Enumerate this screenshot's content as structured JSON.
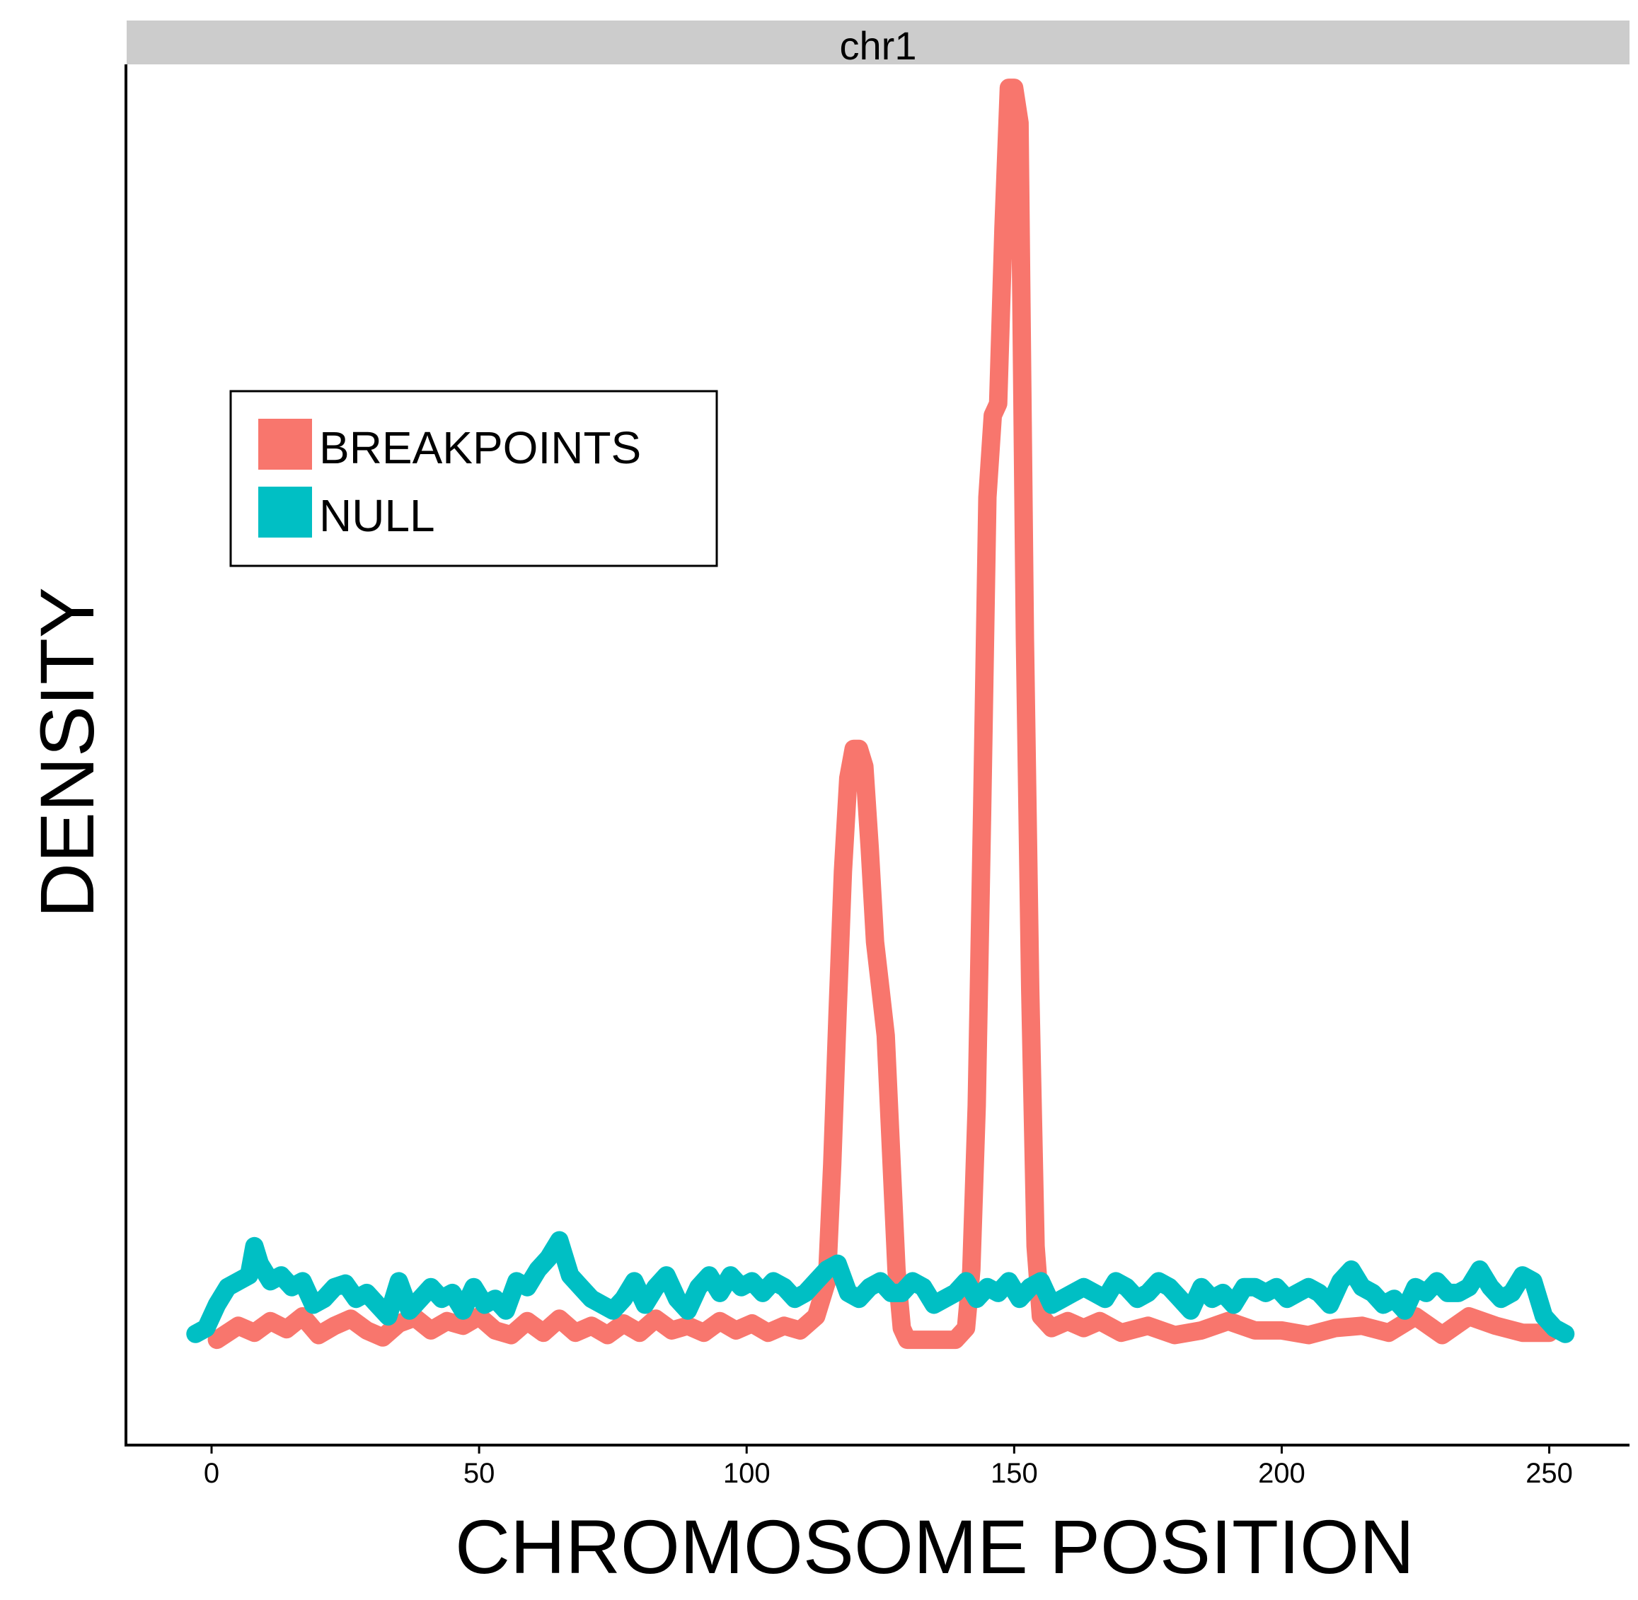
{
  "chart_data": {
    "type": "line",
    "facet": "chr1",
    "xlabel": "CHROMOSOME POSITION",
    "ylabel": "DENSITY",
    "xlim": [
      -16,
      265
    ],
    "ylim": [
      -0.09,
      1.09
    ],
    "x_ticks": [
      0,
      50,
      100,
      150,
      200,
      250
    ],
    "y_ticks_shown": false,
    "grid": false,
    "legend": {
      "position": "top-left",
      "boxed": true
    },
    "series": [
      {
        "name": "BREAKPOINTS",
        "color": "#F8766D",
        "x": [
          1,
          5,
          8,
          11,
          14,
          17,
          20,
          23,
          26,
          29,
          32,
          35,
          38,
          41,
          44,
          47,
          50,
          53,
          56,
          59,
          62,
          65,
          68,
          71,
          74,
          77,
          80,
          83,
          86,
          89,
          92,
          95,
          98,
          101,
          104,
          107,
          110,
          113,
          115,
          116,
          117,
          118,
          119,
          120,
          121,
          122,
          123,
          124,
          125,
          126,
          127,
          128,
          129,
          130,
          131,
          133,
          135,
          137,
          139,
          141,
          142,
          143,
          144,
          145,
          146,
          147,
          148,
          149,
          150,
          151,
          152,
          153,
          154,
          155,
          157,
          160,
          163,
          166,
          170,
          175,
          180,
          185,
          190,
          195,
          200,
          205,
          210,
          215,
          220,
          225,
          230,
          235,
          240,
          245,
          250
        ],
        "y": [
          0.0,
          0.012,
          0.006,
          0.016,
          0.009,
          0.02,
          0.004,
          0.012,
          0.018,
          0.008,
          0.002,
          0.014,
          0.019,
          0.008,
          0.016,
          0.012,
          0.02,
          0.008,
          0.004,
          0.016,
          0.006,
          0.018,
          0.006,
          0.012,
          0.004,
          0.014,
          0.006,
          0.018,
          0.008,
          0.012,
          0.006,
          0.016,
          0.008,
          0.014,
          0.006,
          0.012,
          0.008,
          0.02,
          0.05,
          0.15,
          0.28,
          0.4,
          0.48,
          0.505,
          0.505,
          0.49,
          0.42,
          0.34,
          0.3,
          0.26,
          0.16,
          0.06,
          0.01,
          0.0,
          0.0,
          0.0,
          0.0,
          0.0,
          0.0,
          0.01,
          0.06,
          0.2,
          0.45,
          0.72,
          0.79,
          0.8,
          0.95,
          1.07,
          1.07,
          1.04,
          0.6,
          0.3,
          0.08,
          0.02,
          0.01,
          0.016,
          0.01,
          0.016,
          0.006,
          0.012,
          0.004,
          0.008,
          0.016,
          0.008,
          0.008,
          0.004,
          0.01,
          0.012,
          0.006,
          0.02,
          0.004,
          0.02,
          0.012,
          0.006,
          0.006
        ]
      },
      {
        "name": "NULL",
        "color": "#00BFC4",
        "x": [
          -3,
          -1,
          1,
          3,
          5,
          7,
          8,
          9,
          11,
          13,
          15,
          17,
          19,
          21,
          23,
          25,
          27,
          29,
          31,
          33,
          35,
          37,
          39,
          41,
          43,
          45,
          47,
          49,
          51,
          53,
          55,
          57,
          59,
          61,
          63,
          65,
          67,
          69,
          71,
          73,
          75,
          77,
          79,
          81,
          83,
          85,
          87,
          89,
          91,
          93,
          95,
          97,
          99,
          101,
          103,
          105,
          107,
          109,
          111,
          113,
          115,
          117,
          119,
          121,
          123,
          125,
          127,
          129,
          131,
          133,
          135,
          137,
          139,
          141,
          143,
          145,
          147,
          149,
          151,
          153,
          155,
          157,
          159,
          161,
          163,
          165,
          167,
          169,
          171,
          173,
          175,
          177,
          179,
          181,
          183,
          185,
          187,
          189,
          191,
          193,
          195,
          197,
          199,
          201,
          203,
          205,
          207,
          209,
          211,
          213,
          215,
          217,
          219,
          221,
          223,
          225,
          227,
          229,
          231,
          233,
          235,
          237,
          239,
          241,
          243,
          245,
          247,
          249,
          251,
          253
        ],
        "y": [
          0.005,
          0.01,
          0.03,
          0.045,
          0.05,
          0.055,
          0.08,
          0.065,
          0.05,
          0.055,
          0.045,
          0.05,
          0.03,
          0.035,
          0.045,
          0.048,
          0.035,
          0.04,
          0.03,
          0.02,
          0.05,
          0.025,
          0.035,
          0.045,
          0.035,
          0.04,
          0.025,
          0.045,
          0.03,
          0.035,
          0.025,
          0.05,
          0.045,
          0.06,
          0.07,
          0.085,
          0.055,
          0.045,
          0.035,
          0.03,
          0.025,
          0.035,
          0.05,
          0.03,
          0.045,
          0.055,
          0.035,
          0.025,
          0.045,
          0.055,
          0.04,
          0.055,
          0.045,
          0.05,
          0.04,
          0.05,
          0.045,
          0.035,
          0.04,
          0.05,
          0.06,
          0.065,
          0.04,
          0.035,
          0.045,
          0.05,
          0.04,
          0.04,
          0.05,
          0.045,
          0.03,
          0.035,
          0.04,
          0.05,
          0.035,
          0.045,
          0.04,
          0.05,
          0.035,
          0.045,
          0.05,
          0.03,
          0.035,
          0.04,
          0.045,
          0.04,
          0.035,
          0.05,
          0.045,
          0.035,
          0.04,
          0.05,
          0.045,
          0.035,
          0.025,
          0.045,
          0.035,
          0.04,
          0.03,
          0.045,
          0.045,
          0.04,
          0.045,
          0.035,
          0.04,
          0.045,
          0.04,
          0.03,
          0.05,
          0.06,
          0.045,
          0.04,
          0.03,
          0.035,
          0.025,
          0.045,
          0.04,
          0.05,
          0.04,
          0.04,
          0.045,
          0.06,
          0.045,
          0.035,
          0.04,
          0.055,
          0.05,
          0.02,
          0.01,
          0.005
        ]
      }
    ]
  }
}
